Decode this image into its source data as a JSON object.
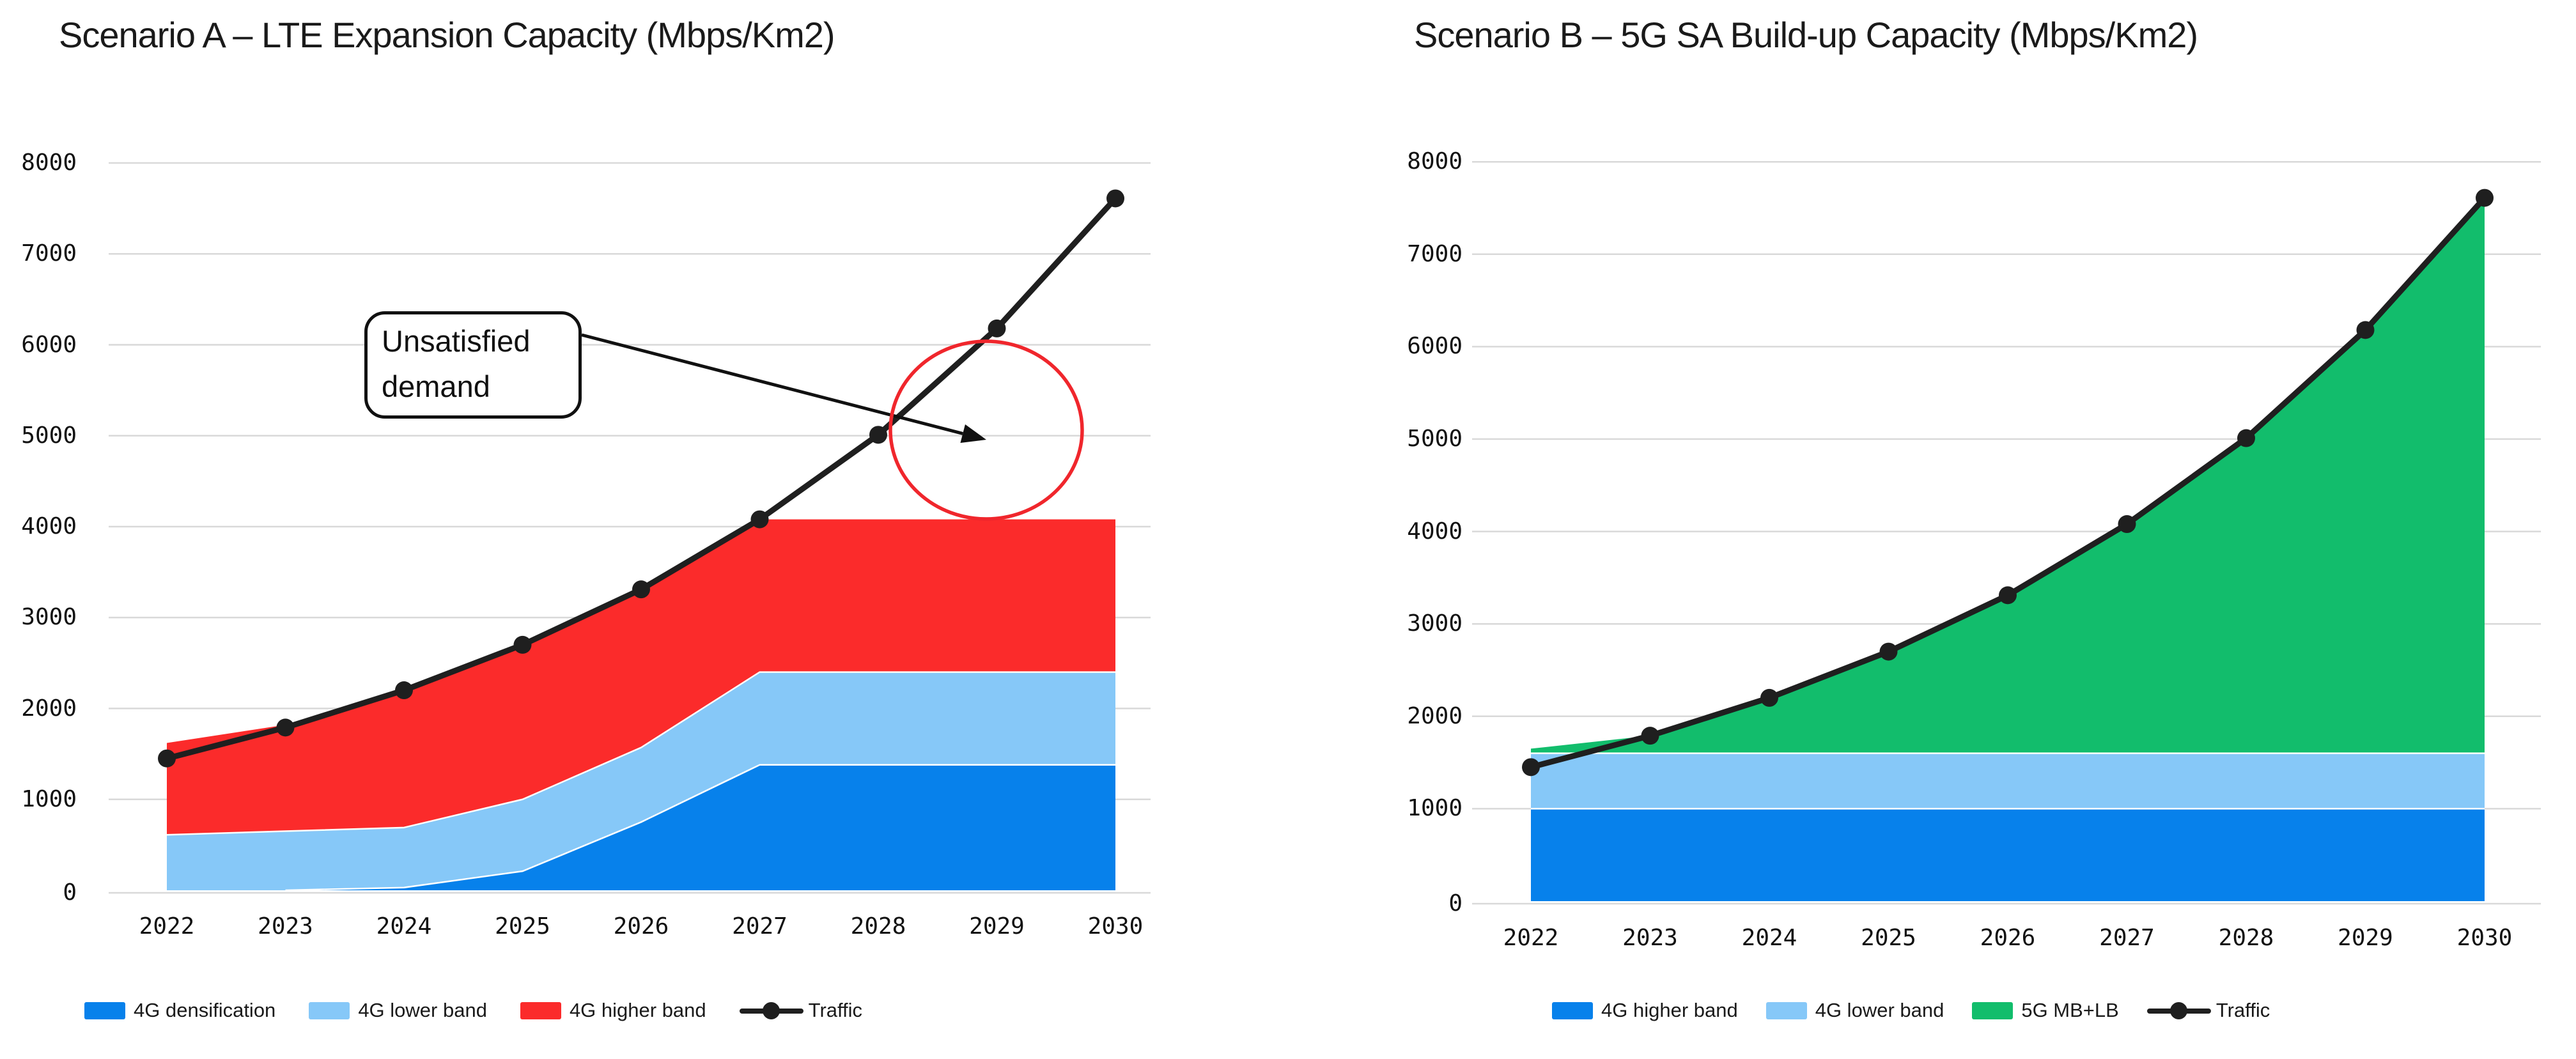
{
  "page": {
    "background": "#FFFFFF",
    "text_color": "#111111",
    "grid_color": "#D9D9D9"
  },
  "chart_data": [
    {
      "id": "scenario-a",
      "type": "area",
      "title": "Scenario A – LTE Expansion Capacity (Mbps/Km2)",
      "categories": [
        2022,
        2023,
        2024,
        2025,
        2026,
        2027,
        2028,
        2029,
        2030
      ],
      "y_axis": {
        "min": 0,
        "max": 8000,
        "tick_step": 1000,
        "ticks": [
          0,
          1000,
          2000,
          3000,
          4000,
          5000,
          6000,
          7000,
          8000
        ]
      },
      "grid": true,
      "legend_position": "bottom",
      "series": [
        {
          "name": "4G densification",
          "color": "#0781EB",
          "values": [
            0,
            0,
            30,
            210,
            750,
            1380,
            1380,
            1380,
            1380
          ]
        },
        {
          "name": "4G lower band",
          "color": "#86C8F8",
          "values": [
            610,
            650,
            660,
            790,
            820,
            1020,
            1020,
            1020,
            1020
          ]
        },
        {
          "name": "4G higher band",
          "color": "#FB2B2B",
          "values": [
            1010,
            1170,
            1520,
            1700,
            1740,
            1680,
            1680,
            1680,
            1680
          ]
        }
      ],
      "line_series": {
        "name": "Traffic",
        "color": "#1F1F1F",
        "values": [
          1450,
          1790,
          2200,
          2700,
          3310,
          4080,
          5010,
          6180,
          7610
        ]
      },
      "annotation": {
        "label": "Unsatisfied demand",
        "circle_color": "#F0262C",
        "arrow_color": "#111111"
      }
    },
    {
      "id": "scenario-b",
      "type": "area",
      "title": "Scenario B – 5G SA Build-up Capacity (Mbps/Km2)",
      "categories": [
        2022,
        2023,
        2024,
        2025,
        2026,
        2027,
        2028,
        2029,
        2030
      ],
      "y_axis": {
        "min": 0,
        "max": 8000,
        "tick_step": 1000,
        "ticks": [
          0,
          1000,
          2000,
          3000,
          4000,
          5000,
          6000,
          7000,
          8000
        ]
      },
      "grid": true,
      "legend_position": "bottom",
      "series": [
        {
          "name": "4G higher band",
          "color": "#0781EB",
          "values": [
            1000,
            1000,
            1000,
            1000,
            1000,
            1000,
            1000,
            1000,
            1000
          ]
        },
        {
          "name": "4G lower band",
          "color": "#86C8F8",
          "values": [
            600,
            600,
            600,
            600,
            600,
            600,
            600,
            600,
            600
          ]
        },
        {
          "name": "5G MB+LB",
          "color": "#12BD6C",
          "values": [
            50,
            190,
            600,
            1100,
            1710,
            2480,
            3410,
            4580,
            6010
          ]
        }
      ],
      "line_series": {
        "name": "Traffic",
        "color": "#1F1F1F",
        "values": [
          1450,
          1790,
          2200,
          2700,
          3310,
          4080,
          5010,
          6180,
          7610
        ]
      }
    }
  ]
}
